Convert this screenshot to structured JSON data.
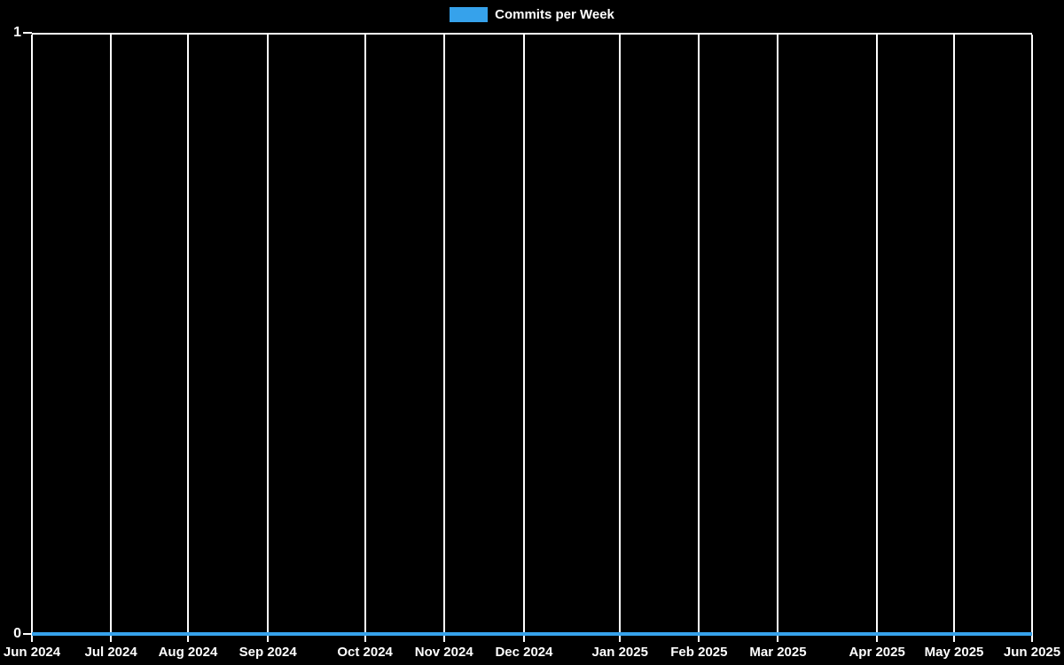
{
  "chart_data": {
    "type": "line",
    "title": "",
    "legend_position": "top-center",
    "legend": [
      {
        "label": "Commits per Week",
        "color": "#36a2eb"
      }
    ],
    "series": [
      {
        "name": "Commits per Week",
        "color": "#36a2eb",
        "interval": "weekly",
        "x_start": "Jun 2024",
        "x_end": "Jun 2025",
        "constant_value": 0,
        "values": [
          0,
          0,
          0,
          0,
          0,
          0,
          0,
          0,
          0,
          0,
          0,
          0,
          0,
          0,
          0,
          0,
          0,
          0,
          0,
          0,
          0,
          0,
          0,
          0,
          0,
          0,
          0,
          0,
          0,
          0,
          0,
          0,
          0,
          0,
          0,
          0,
          0,
          0,
          0,
          0,
          0,
          0,
          0,
          0,
          0,
          0,
          0,
          0,
          0,
          0,
          0,
          0,
          0
        ]
      }
    ],
    "x_ticks": [
      {
        "label": "Jun 2024",
        "pct": 0
      },
      {
        "label": "Jul 2024",
        "pct": 7.9
      },
      {
        "label": "Aug 2024",
        "pct": 15.6
      },
      {
        "label": "Sep 2024",
        "pct": 23.6
      },
      {
        "label": "Oct 2024",
        "pct": 33.3
      },
      {
        "label": "Nov 2024",
        "pct": 41.2
      },
      {
        "label": "Dec 2024",
        "pct": 49.2
      },
      {
        "label": "Jan 2025",
        "pct": 58.8
      },
      {
        "label": "Feb 2025",
        "pct": 66.7
      },
      {
        "label": "Mar 2025",
        "pct": 74.6
      },
      {
        "label": "Apr 2025",
        "pct": 84.5
      },
      {
        "label": "May 2025",
        "pct": 92.2
      },
      {
        "label": "Jun 2025",
        "pct": 100
      }
    ],
    "y_ticks": [
      {
        "label": "1",
        "pct": 0
      },
      {
        "label": "0",
        "pct": 100
      }
    ],
    "ylim": [
      0,
      1
    ],
    "grid": "vertical-only",
    "colors": {
      "background": "#000000",
      "grid": "#ffffff",
      "axis": "#ffffff",
      "text": "#ffffff",
      "line": "#36a2eb"
    }
  }
}
